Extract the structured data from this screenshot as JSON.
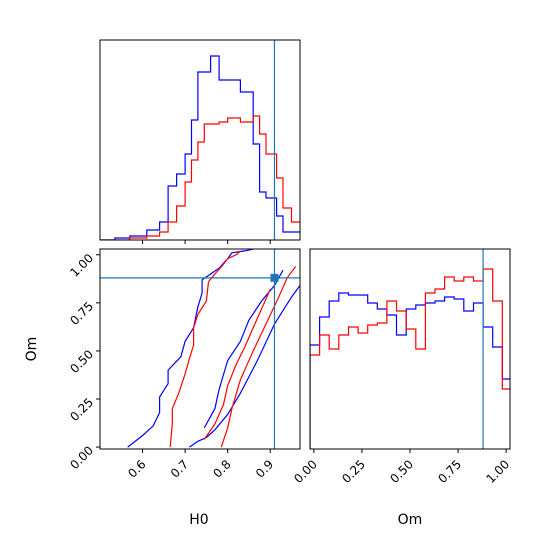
{
  "chart_data": [
    {
      "type": "line",
      "panel": "H0 marginal histogram",
      "xlim": [
        0.5,
        0.97
      ],
      "truth_x": 0.91,
      "series": [
        {
          "color": "#0000ff",
          "x": [
            0.5,
            0.535,
            0.535,
            0.57,
            0.57,
            0.61,
            0.61,
            0.64,
            0.64,
            0.66,
            0.66,
            0.68,
            0.68,
            0.7,
            0.7,
            0.715,
            0.715,
            0.73,
            0.73,
            0.76,
            0.76,
            0.78,
            0.78,
            0.8,
            0.8,
            0.83,
            0.83,
            0.86,
            0.86,
            0.875,
            0.875,
            0.89,
            0.89,
            0.915,
            0.915,
            0.93,
            0.93,
            0.97
          ],
          "y": [
            0,
            0,
            0.01,
            0.01,
            0.02,
            0.02,
            0.05,
            0.05,
            0.09,
            0.09,
            0.27,
            0.27,
            0.33,
            0.33,
            0.43,
            0.43,
            0.6,
            0.6,
            0.84,
            0.84,
            0.92,
            0.92,
            0.8,
            0.8,
            0.8,
            0.8,
            0.74,
            0.74,
            0.48,
            0.48,
            0.24,
            0.24,
            0.21,
            0.21,
            0.12,
            0.12,
            0.04,
            0.04
          ]
        },
        {
          "color": "#ff0000",
          "x": [
            0.5,
            0.57,
            0.57,
            0.61,
            0.61,
            0.64,
            0.64,
            0.66,
            0.66,
            0.68,
            0.68,
            0.7,
            0.7,
            0.715,
            0.715,
            0.73,
            0.73,
            0.745,
            0.745,
            0.78,
            0.78,
            0.8,
            0.8,
            0.83,
            0.83,
            0.86,
            0.86,
            0.875,
            0.875,
            0.89,
            0.89,
            0.915,
            0.915,
            0.93,
            0.93,
            0.95,
            0.95,
            0.97
          ],
          "y": [
            0,
            0,
            0.01,
            0.01,
            0.02,
            0.02,
            0.04,
            0.04,
            0.09,
            0.09,
            0.17,
            0.17,
            0.29,
            0.29,
            0.4,
            0.4,
            0.49,
            0.49,
            0.58,
            0.58,
            0.59,
            0.59,
            0.61,
            0.61,
            0.59,
            0.59,
            0.62,
            0.62,
            0.53,
            0.53,
            0.43,
            0.43,
            0.31,
            0.31,
            0.16,
            0.16,
            0.09,
            0.09
          ]
        }
      ]
    },
    {
      "type": "line",
      "panel": "H0 vs Om contours",
      "xlabel": "H0",
      "ylabel": "Om",
      "xlim": [
        0.5,
        0.97
      ],
      "ylim": [
        -0.01,
        1.03
      ],
      "xticks": [
        "0.6",
        "0.7",
        "0.8",
        "0.9"
      ],
      "yticks": [
        "0.00",
        "0.25",
        "0.50",
        "0.75",
        "1.00"
      ],
      "truth": {
        "x": 0.91,
        "y": 0.88
      },
      "series": [
        {
          "color": "#0000ff",
          "x": [
            0.565,
            0.6,
            0.625,
            0.64,
            0.64,
            0.66,
            0.66,
            0.69,
            0.7,
            0.72,
            0.73,
            0.74,
            0.74,
            0.76,
            0.78,
            0.8,
            0.81,
            0.84,
            0.86
          ],
          "y": [
            0.0,
            0.06,
            0.11,
            0.18,
            0.26,
            0.33,
            0.4,
            0.47,
            0.55,
            0.62,
            0.73,
            0.8,
            0.87,
            0.9,
            0.93,
            0.98,
            1.01,
            1.02,
            1.03
          ]
        },
        {
          "color": "#0000ff",
          "x": [
            0.71,
            0.73,
            0.75,
            0.77,
            0.8,
            0.83,
            0.87,
            0.91,
            0.95,
            0.97
          ],
          "y": [
            0.0,
            0.03,
            0.05,
            0.09,
            0.17,
            0.28,
            0.45,
            0.64,
            0.78,
            0.84
          ]
        },
        {
          "color": "#0000ff",
          "x": [
            0.745,
            0.77,
            0.78,
            0.8,
            0.83,
            0.85,
            0.88,
            0.91,
            0.93
          ],
          "y": [
            0.1,
            0.2,
            0.3,
            0.45,
            0.55,
            0.66,
            0.76,
            0.84,
            0.92
          ]
        },
        {
          "color": "#ff0000",
          "x": [
            0.665,
            0.67,
            0.67,
            0.685,
            0.7,
            0.71,
            0.72,
            0.72,
            0.73,
            0.75,
            0.755,
            0.77,
            0.79,
            0.8,
            0.82,
            0.83
          ],
          "y": [
            0.0,
            0.12,
            0.2,
            0.28,
            0.38,
            0.46,
            0.53,
            0.62,
            0.69,
            0.76,
            0.86,
            0.9,
            0.95,
            0.98,
            1.0,
            1.02
          ]
        },
        {
          "color": "#ff0000",
          "x": [
            0.785,
            0.8,
            0.81,
            0.83,
            0.86,
            0.89,
            0.92,
            0.94,
            0.96
          ],
          "y": [
            0.0,
            0.1,
            0.2,
            0.35,
            0.5,
            0.64,
            0.78,
            0.88,
            0.94
          ]
        },
        {
          "color": "#ff0000",
          "x": [
            0.745,
            0.77,
            0.79,
            0.8,
            0.82,
            0.84,
            0.86,
            0.88,
            0.9
          ],
          "y": [
            0.04,
            0.12,
            0.22,
            0.32,
            0.43,
            0.52,
            0.62,
            0.72,
            0.82
          ]
        }
      ]
    },
    {
      "type": "line",
      "panel": "Om marginal histogram",
      "xlabel": "Om",
      "xlim": [
        -0.02,
        1.02
      ],
      "xticks": [
        "0.00",
        "0.25",
        "0.50",
        "0.75",
        "1.00"
      ],
      "truth_x": 0.88,
      "series": [
        {
          "color": "#0000ff",
          "x": [
            -0.02,
            -0.02,
            0.03,
            0.03,
            0.08,
            0.08,
            0.13,
            0.13,
            0.18,
            0.18,
            0.23,
            0.23,
            0.28,
            0.28,
            0.33,
            0.33,
            0.38,
            0.38,
            0.43,
            0.43,
            0.48,
            0.48,
            0.53,
            0.53,
            0.58,
            0.58,
            0.63,
            0.63,
            0.68,
            0.68,
            0.73,
            0.73,
            0.78,
            0.78,
            0.83,
            0.83,
            0.88,
            0.88,
            0.93,
            0.93,
            0.98,
            0.98,
            1.02
          ],
          "y": [
            0,
            0.52,
            0.52,
            0.66,
            0.66,
            0.74,
            0.74,
            0.78,
            0.78,
            0.77,
            0.77,
            0.77,
            0.77,
            0.73,
            0.73,
            0.7,
            0.7,
            0.67,
            0.67,
            0.57,
            0.57,
            0.7,
            0.7,
            0.72,
            0.72,
            0.73,
            0.73,
            0.74,
            0.74,
            0.76,
            0.76,
            0.75,
            0.75,
            0.69,
            0.69,
            0.73,
            0.73,
            0.61,
            0.61,
            0.51,
            0.51,
            0.35,
            0.35
          ]
        },
        {
          "color": "#ff0000",
          "x": [
            -0.02,
            -0.02,
            0.03,
            0.03,
            0.08,
            0.08,
            0.13,
            0.13,
            0.18,
            0.18,
            0.23,
            0.23,
            0.28,
            0.28,
            0.33,
            0.33,
            0.38,
            0.38,
            0.43,
            0.43,
            0.48,
            0.48,
            0.53,
            0.53,
            0.58,
            0.58,
            0.63,
            0.63,
            0.68,
            0.68,
            0.73,
            0.73,
            0.78,
            0.78,
            0.83,
            0.83,
            0.88,
            0.88,
            0.93,
            0.93,
            0.98,
            0.98,
            1.02
          ],
          "y": [
            0,
            0.47,
            0.47,
            0.57,
            0.57,
            0.5,
            0.5,
            0.57,
            0.57,
            0.61,
            0.61,
            0.58,
            0.58,
            0.62,
            0.62,
            0.63,
            0.63,
            0.74,
            0.74,
            0.69,
            0.69,
            0.6,
            0.6,
            0.5,
            0.5,
            0.78,
            0.78,
            0.8,
            0.8,
            0.86,
            0.86,
            0.84,
            0.84,
            0.86,
            0.86,
            0.84,
            0.84,
            0.9,
            0.9,
            0.74,
            0.74,
            0.3,
            0.3
          ]
        }
      ]
    }
  ]
}
